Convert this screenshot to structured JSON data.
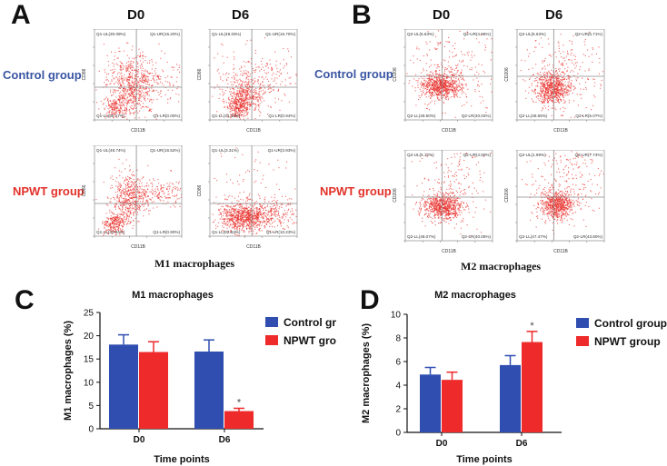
{
  "panels": {
    "A": "A",
    "B": "B",
    "C": "C",
    "D": "D"
  },
  "flow": {
    "col_d0": "D0",
    "col_d6": "D6",
    "row_control": "Control group",
    "row_npwt": "NPWT group",
    "caption_m1": "M1 macrophages",
    "caption_m2": "M2 macrophages",
    "m1_x_axis": "CD11B",
    "m1_y_axis": "CD86",
    "m2_x_axis": "CD11B",
    "m2_y_axis": "CD206",
    "colors": {
      "control_label": "#3a55a3",
      "npwt_label": "#e2322a",
      "dots": "#e8322e"
    },
    "m1_plots": [
      {
        "ul": "Q1-UL(30.09%)",
        "ur": "Q1-UR(16.20%)",
        "ll": "Q1-LL(50.17%)",
        "lr": "Q1-LR(0.00%)"
      },
      {
        "ul": "Q1-UL(48.03%)",
        "ur": "Q1-UR(16.70%)",
        "ll": "Q1-LL(34.33%)",
        "lr": "Q1-LR(0.94%)"
      },
      {
        "ul": "Q1-UL(48.74%)",
        "ur": "Q1-UR(16.52%)",
        "ll": "Q1-LL(33.84%)",
        "lr": "Q1-LR(0.90%)"
      },
      {
        "ul": "Q1-UL(3.31%)",
        "ur": "Q1-UR(3.93%)",
        "ll": "Q1-LL(82.53%)",
        "lr": "Q1-LR(10.23%)"
      }
    ],
    "m2_plots": [
      {
        "ul": "Q2-UL(5.63%)",
        "ur": "Q2-UR(4.95%)",
        "ll": "Q2-LL(49.50%)",
        "lr": "Q2-LR(40.02%)"
      },
      {
        "ul": "Q2-UL(5.63%)",
        "ur": "Q2-UR(5.71%)",
        "ll": "Q2-LL(48.65%)",
        "lr": "Q2-LR(5.07%)"
      },
      {
        "ul": "Q2-UL(5.12%)",
        "ur": "Q2-UR(4.59%)",
        "ll": "Q2-LL(48.07%)",
        "lr": "Q2-LR(40.05%)"
      },
      {
        "ul": "Q2-UL(1.99%)",
        "ur": "Q2-UR(7.74%)",
        "ll": "Q2-LL(47.47%)",
        "lr": "Q2-LR(43.80%)"
      }
    ]
  },
  "chart_data": [
    {
      "type": "bar",
      "title": "M1 macrophages",
      "xlabel": "Time points",
      "ylabel": "M1 macrophages (%)",
      "categories": [
        "D0",
        "D6"
      ],
      "ylim": [
        0,
        25
      ],
      "yticks": [
        0,
        5,
        10,
        15,
        20,
        25
      ],
      "series": [
        {
          "name": "Control group",
          "color": "#2f4eb0",
          "values": [
            18.1,
            16.6
          ],
          "errors": [
            2.1,
            2.5
          ]
        },
        {
          "name": "NPWT group",
          "color": "#ee2a2a",
          "values": [
            16.5,
            3.8
          ],
          "errors": [
            2.2,
            0.6
          ]
        }
      ],
      "annotations": [
        {
          "category": "D6",
          "series": "NPWT group",
          "text": "*"
        }
      ],
      "legend": "top-right"
    },
    {
      "type": "bar",
      "title": "M2 macrophages",
      "xlabel": "Time points",
      "ylabel": "M2 macrophages (%)",
      "categories": [
        "D0",
        "D6"
      ],
      "ylim": [
        0,
        10
      ],
      "yticks": [
        0,
        2,
        4,
        6,
        8,
        10
      ],
      "series": [
        {
          "name": "Control group",
          "color": "#2f4eb0",
          "values": [
            4.9,
            5.7
          ],
          "errors": [
            0.6,
            0.8
          ]
        },
        {
          "name": "NPWT group",
          "color": "#ee2a2a",
          "values": [
            4.45,
            7.65
          ],
          "errors": [
            0.65,
            0.9
          ]
        }
      ],
      "annotations": [
        {
          "category": "D6",
          "series": "NPWT group",
          "text": "*"
        }
      ],
      "legend": "top-right"
    }
  ]
}
